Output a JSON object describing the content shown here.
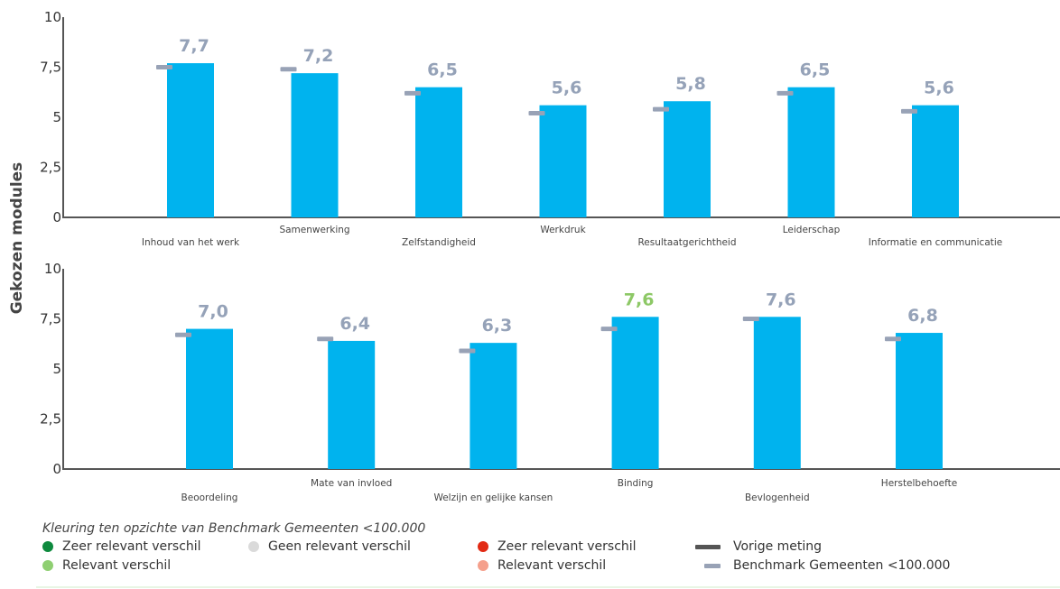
{
  "ylabel": "Gekozen modules",
  "colors": {
    "bar": "#00b3ee",
    "benchmark": "#98a2b6",
    "value_label": "#95a2b8",
    "value_label_relevant_positive": "#8dc866",
    "axis": "#555555"
  },
  "chart_data": [
    {
      "type": "bar",
      "title": "",
      "ylim": [
        0,
        10
      ],
      "yticks": [
        "0",
        "2,5",
        "5",
        "7,5",
        "10"
      ],
      "ytick_values": [
        0,
        2.5,
        5,
        7.5,
        10
      ],
      "categories": [
        "Inhoud van het werk",
        "Samenwerking",
        "Zelfstandigheid",
        "Werkdruk",
        "Resultaatgerichtheid",
        "Leiderschap",
        "Informatie en communicatie"
      ],
      "values": [
        7.7,
        7.2,
        6.5,
        5.6,
        5.8,
        6.5,
        5.6
      ],
      "value_labels": [
        "7,7",
        "7,2",
        "6,5",
        "5,6",
        "5,8",
        "6,5",
        "5,6"
      ],
      "value_label_status": [
        "none",
        "none",
        "none",
        "none",
        "none",
        "none",
        "none"
      ],
      "benchmark": [
        7.5,
        7.4,
        6.2,
        5.2,
        5.4,
        6.2,
        5.3
      ]
    },
    {
      "type": "bar",
      "title": "",
      "ylim": [
        0,
        10
      ],
      "yticks": [
        "0",
        "2,5",
        "5",
        "7,5",
        "10"
      ],
      "ytick_values": [
        0,
        2.5,
        5,
        7.5,
        10
      ],
      "categories": [
        "Beoordeling",
        "Mate van invloed",
        "Welzijn en gelijke kansen",
        "Binding",
        "Bevlogenheid",
        "Herstelbehoefte"
      ],
      "values": [
        7.0,
        6.4,
        6.3,
        7.6,
        7.6,
        6.8
      ],
      "value_labels": [
        "7,0",
        "6,4",
        "6,3",
        "7,6",
        "7,6",
        "6,8"
      ],
      "value_label_status": [
        "none",
        "none",
        "none",
        "relevant_positive",
        "none",
        "none"
      ],
      "benchmark": [
        6.7,
        6.5,
        5.9,
        7.0,
        7.5,
        6.5
      ]
    }
  ],
  "legend": {
    "title": "Kleuring ten opzichte van Benchmark Gemeenten <100.000",
    "items": [
      {
        "label": "Zeer relevant verschil",
        "color": "#0e8a3e",
        "kind": "dot"
      },
      {
        "label": "Relevant verschil",
        "color": "#8fcf72",
        "kind": "dot"
      },
      {
        "label": "Geen relevant verschil",
        "color": "#dadada",
        "kind": "dot"
      },
      {
        "label": "Zeer relevant verschil",
        "color": "#e22a14",
        "kind": "dot"
      },
      {
        "label": "Relevant verschil",
        "color": "#f5a08c",
        "kind": "dot"
      },
      {
        "label": "Vorige meting",
        "color": "#555555",
        "kind": "bar"
      },
      {
        "label": "Benchmark Gemeenten <100.000",
        "color": "#98a2b6",
        "kind": "bar"
      }
    ]
  }
}
